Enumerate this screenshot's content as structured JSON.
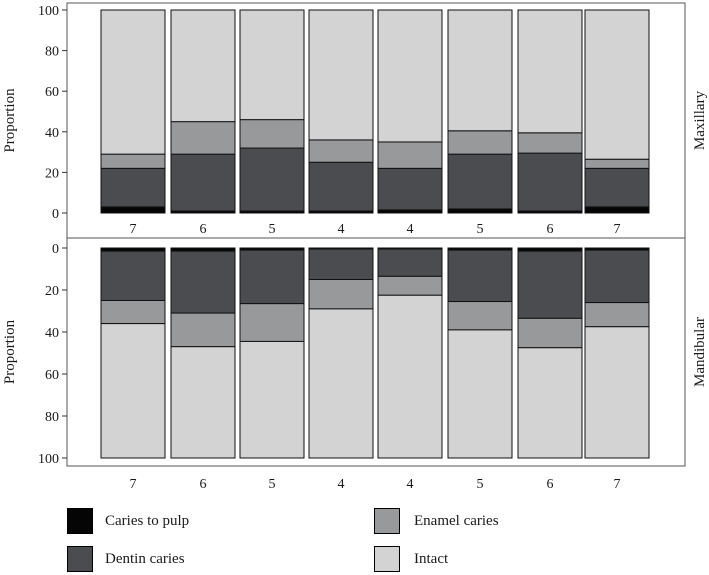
{
  "chart_data": {
    "type": "bar",
    "stacked": true,
    "categories": [
      "7",
      "6",
      "5",
      "4",
      "4",
      "5",
      "6",
      "7"
    ],
    "ylabel": "Proportion",
    "ylim": [
      0,
      100
    ],
    "yticks": [
      "0",
      "20",
      "40",
      "60",
      "80",
      "100"
    ],
    "legend_position": "bottom",
    "colors": {
      "Caries to pulp": "#050505",
      "Dentin caries": "#4a4c4f",
      "Enamel caries": "#98999b",
      "Intact": "#d3d3d3"
    },
    "panels": [
      {
        "label": "Maxillary",
        "direction": "up",
        "series": [
          {
            "name": "Caries to pulp",
            "values": [
              3,
              1,
              1,
              1,
              1.5,
              2,
              1,
              3
            ]
          },
          {
            "name": "Dentin caries",
            "values": [
              19,
              28,
              31,
              24,
              20.5,
              27,
              28.5,
              19
            ]
          },
          {
            "name": "Enamel caries",
            "values": [
              7,
              16,
              14,
              11,
              13,
              11.5,
              10,
              4.5
            ]
          },
          {
            "name": "Intact",
            "values": [
              71,
              55,
              54,
              64,
              65,
              59.5,
              60.5,
              73.5
            ]
          }
        ]
      },
      {
        "label": "Mandibular",
        "direction": "down",
        "series": [
          {
            "name": "Caries to pulp",
            "values": [
              1.5,
              1.5,
              1,
              0.5,
              0.5,
              1,
              1.5,
              1
            ]
          },
          {
            "name": "Dentin caries",
            "values": [
              23.5,
              29.5,
              25.5,
              14.5,
              13,
              24.5,
              32,
              25
            ]
          },
          {
            "name": "Enamel caries",
            "values": [
              11,
              16,
              18,
              14,
              9,
              13.5,
              14,
              11.5
            ]
          },
          {
            "name": "Intact",
            "values": [
              64,
              53,
              55.5,
              71,
              77.5,
              61,
              52.5,
              62.5
            ]
          }
        ]
      }
    ]
  }
}
